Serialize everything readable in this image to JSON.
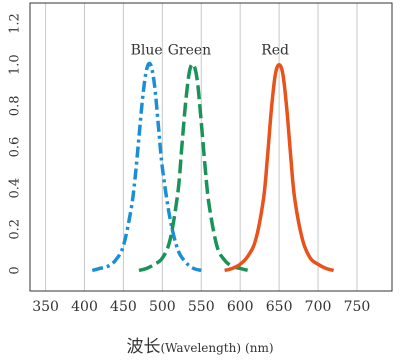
{
  "chart_data": {
    "type": "line",
    "title": "",
    "xlabel_main": "波长",
    "xlabel_sub_1": "(Wavelength)",
    "xlabel_sub_2": "(nm)",
    "xlim": [
      330,
      795
    ],
    "ylim": [
      -0.1,
      1.3
    ],
    "x_ticks": [
      350,
      400,
      450,
      500,
      550,
      600,
      650,
      700,
      750
    ],
    "x_tick_labels": [
      "350",
      "400",
      "450",
      "500",
      "550",
      "600",
      "650",
      "700",
      "750"
    ],
    "y_ticks": [
      0,
      0.2,
      0.4,
      0.6,
      0.8,
      1.0,
      1.2
    ],
    "y_tick_labels": [
      "0",
      "0.2",
      "0.4",
      "0.6",
      "0.8",
      "1.0",
      "1.2"
    ],
    "grid": "vertical",
    "series": [
      {
        "name": "Blue",
        "color": "#1a8fd6",
        "style": "dash-dot",
        "x": [
          410,
          420,
          430,
          440,
          450,
          460,
          465,
          470,
          475,
          480,
          485,
          490,
          495,
          500,
          510,
          520,
          530,
          540,
          550
        ],
        "y": [
          0.0,
          0.01,
          0.02,
          0.05,
          0.12,
          0.3,
          0.45,
          0.65,
          0.85,
          0.98,
          1.0,
          0.9,
          0.7,
          0.5,
          0.25,
          0.1,
          0.04,
          0.01,
          0.0
        ]
      },
      {
        "name": "Green",
        "color": "#19935a",
        "style": "long-dash",
        "x": [
          470,
          480,
          490,
          500,
          510,
          520,
          525,
          530,
          535,
          540,
          545,
          550,
          555,
          560,
          570,
          580,
          590,
          600,
          610
        ],
        "y": [
          0.0,
          0.01,
          0.03,
          0.06,
          0.15,
          0.38,
          0.6,
          0.82,
          0.97,
          1.0,
          0.92,
          0.72,
          0.5,
          0.32,
          0.12,
          0.05,
          0.02,
          0.01,
          0.0
        ]
      },
      {
        "name": "Red",
        "color": "#e8531c",
        "style": "solid",
        "x": [
          580,
          590,
          600,
          610,
          620,
          630,
          635,
          640,
          645,
          650,
          655,
          660,
          665,
          670,
          680,
          690,
          700,
          710,
          720
        ],
        "y": [
          0.0,
          0.01,
          0.03,
          0.07,
          0.15,
          0.35,
          0.55,
          0.78,
          0.95,
          1.0,
          0.95,
          0.78,
          0.55,
          0.35,
          0.15,
          0.06,
          0.03,
          0.01,
          0.0
        ]
      }
    ]
  }
}
